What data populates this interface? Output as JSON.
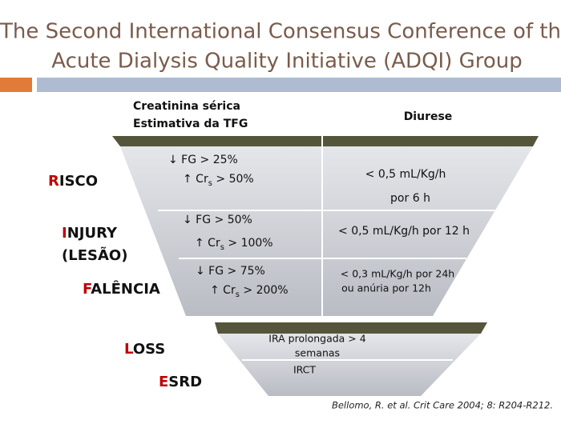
{
  "title": {
    "lines": [
      "The Second International Consensus Conference of the",
      "Acute Dialysis Quality Initiative (ADQI) Group"
    ]
  },
  "headers": {
    "left": [
      "Creatinina sérica",
      "Estimativa da TFG"
    ],
    "right": "Diurese"
  },
  "stages": [
    {
      "initial": "R",
      "rest": "ISCO"
    },
    {
      "initial": "I",
      "rest": "NJURY",
      "line2": "(LESÃO)"
    },
    {
      "initial": "F",
      "rest": "ALÊNCIA"
    },
    {
      "initial": "L",
      "rest": "OSS"
    },
    {
      "initial": "E",
      "rest": "SRD"
    }
  ],
  "criteria": [
    {
      "fg": "↓ FG > 25%",
      "cr": {
        "prefix": "↑ Cr",
        "sub": "s",
        "suffix": " > 50%"
      },
      "urine": [
        "< 0,5 mL/Kg/h",
        "por 6 h"
      ]
    },
    {
      "fg": "↓ FG > 50%",
      "cr": {
        "prefix": "↑ Cr",
        "sub": "s",
        "suffix": " > 100%"
      },
      "urine": [
        "< 0,5 mL/Kg/h por 12 h"
      ]
    },
    {
      "fg": "↓ FG > 75%",
      "cr": {
        "prefix": "↑ Cr",
        "sub": "s",
        "suffix": " > 200%"
      },
      "urine": [
        "< 0,3 mL/Kg/h  por 24h",
        "ou anúria por 12h"
      ]
    }
  ],
  "outcomes": {
    "loss": [
      "IRA prolongada > 4",
      "semanas"
    ],
    "esrd": "IRCT"
  },
  "reference": "Bellomo, R. et al. Crit Care 2004; 8: R204-R212."
}
